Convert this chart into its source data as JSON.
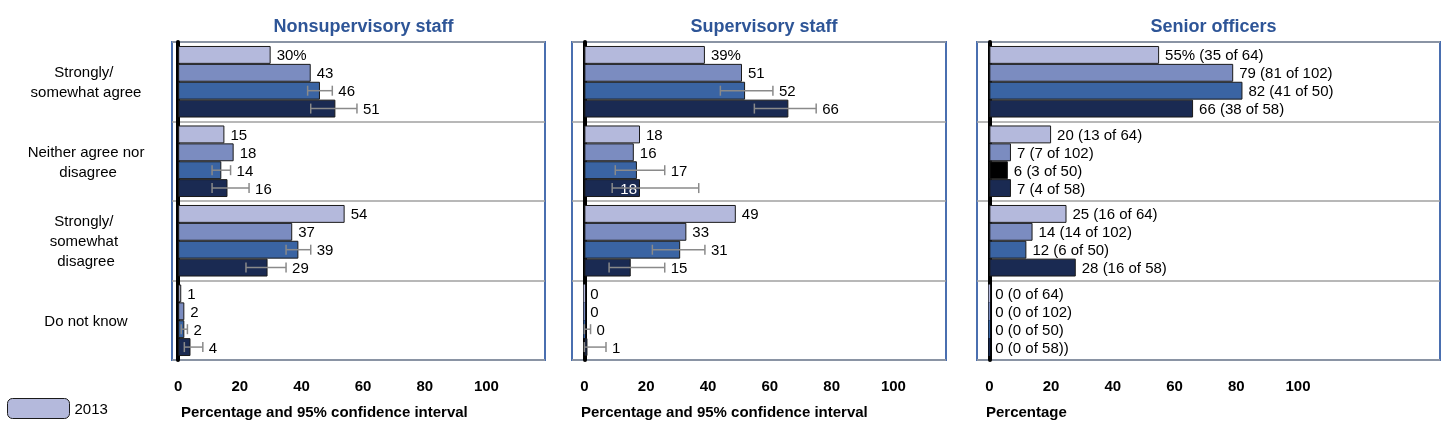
{
  "chart_data": [
    {
      "type": "bar",
      "orientation": "horizontal",
      "title": "Nonsupervisory staff",
      "xlabel": "Percentage and 95% confidence interval",
      "categories": [
        "Strongly/ somewhat agree",
        "Neither agree nor disagree",
        "Strongly/ somewhat disagree",
        "Do not know"
      ],
      "series": [
        {
          "name": "2013",
          "color": "#b4b9dc",
          "values": [
            30,
            15,
            54,
            1
          ],
          "value_labels": [
            "30%",
            "15",
            "54",
            "1"
          ]
        },
        {
          "color": "#7b8cc0",
          "values": [
            43,
            18,
            37,
            2
          ],
          "value_labels": [
            "43",
            "18",
            "37",
            "2"
          ]
        },
        {
          "color": "#3a64a3",
          "values": [
            46,
            14,
            39,
            2
          ],
          "value_labels": [
            "46",
            "14",
            "39",
            "2"
          ],
          "errors": [
            [
              42,
              50
            ],
            [
              11,
              17
            ],
            [
              35,
              43
            ],
            [
              1,
              3
            ]
          ]
        },
        {
          "color": "#1a2a52",
          "values": [
            51,
            16,
            29,
            4
          ],
          "value_labels": [
            "51",
            "16",
            "29",
            "4"
          ],
          "errors": [
            [
              43,
              58
            ],
            [
              11,
              23
            ],
            [
              22,
              35
            ],
            [
              2,
              8
            ]
          ]
        }
      ],
      "xlim": [
        -2,
        119
      ],
      "xticks": [
        0,
        20,
        40,
        60,
        80,
        100
      ],
      "grid": "y",
      "legend": "bottom left"
    },
    {
      "type": "bar",
      "orientation": "horizontal",
      "title": "Supervisory staff",
      "xlabel": "Percentage and 95% confidence interval",
      "categories": [
        "Strongly/ somewhat agree",
        "Neither agree nor disagree",
        "Strongly/ somewhat disagree",
        "Do not know"
      ],
      "series": [
        {
          "color": "#b4b9dc",
          "values": [
            39,
            18,
            49,
            0
          ],
          "value_labels": [
            "39%",
            "18",
            "49",
            "0"
          ]
        },
        {
          "color": "#7b8cc0",
          "values": [
            51,
            16,
            33,
            0
          ],
          "value_labels": [
            "51",
            "16",
            "33",
            "0"
          ]
        },
        {
          "color": "#3a64a3",
          "values": [
            52,
            17,
            31,
            0
          ],
          "value_labels": [
            "52",
            "17",
            "31",
            "0"
          ],
          "errors": [
            [
              44,
              61
            ],
            [
              10,
              26
            ],
            [
              22,
              39
            ],
            [
              0,
              2
            ]
          ]
        },
        {
          "color": "#1a2a52",
          "values": [
            66,
            18,
            15,
            1
          ],
          "value_labels": [
            "66",
            "18",
            "15",
            "1"
          ],
          "errors": [
            [
              55,
              75
            ],
            [
              9,
              37
            ],
            [
              8,
              26
            ],
            [
              0,
              7
            ]
          ]
        }
      ],
      "xlim": [
        -4,
        117
      ],
      "xticks": [
        0,
        20,
        40,
        60,
        80,
        100
      ],
      "grid": "y",
      "tick_labels": "x"
    },
    {
      "type": "bar",
      "orientation": "horizontal",
      "title": "Senior officers",
      "xlabel": "Percentage",
      "categories": [
        "Strongly/ somewhat agree",
        "Neither agree nor disagree",
        "Strongly/ somewhat disagree",
        "Do not know"
      ],
      "series": [
        {
          "color": "#b4b9dc",
          "values": [
            55,
            20,
            25,
            0
          ],
          "value_labels": [
            "55% (35 of 64)",
            "20 (13 of 64)",
            "25 (16 of 64)",
            "0 (0 of 64)"
          ]
        },
        {
          "color": "#7b8cc0",
          "values": [
            79,
            7,
            14,
            0
          ],
          "value_labels": [
            "79 (81 of 102)",
            "7 (7 of 102)",
            "14 (14 of 102)",
            "0 (0 of 102)"
          ]
        },
        {
          "color": "#3a64a3",
          "colors": [
            "#3a64a3",
            "#000000",
            "#3a64a3",
            "#3a64a3"
          ],
          "values": [
            82,
            6,
            12,
            0
          ],
          "value_labels": [
            "82 (41 of 50)",
            "6 (3 of 50)",
            "12 (6 of 50)",
            "0 (0 of 50)"
          ]
        },
        {
          "color": "#1a2a52",
          "values": [
            66,
            7,
            28,
            0
          ],
          "value_labels": [
            "66 (38 of 58)",
            "7 (4 of 58)",
            "28 (16 of 58)",
            "0 (0 of 58))"
          ]
        }
      ],
      "xlim": [
        -4,
        146
      ],
      "xticks": [
        0,
        20,
        40,
        60,
        80,
        100
      ],
      "grid": "y",
      "tick_labels": "x"
    }
  ]
}
